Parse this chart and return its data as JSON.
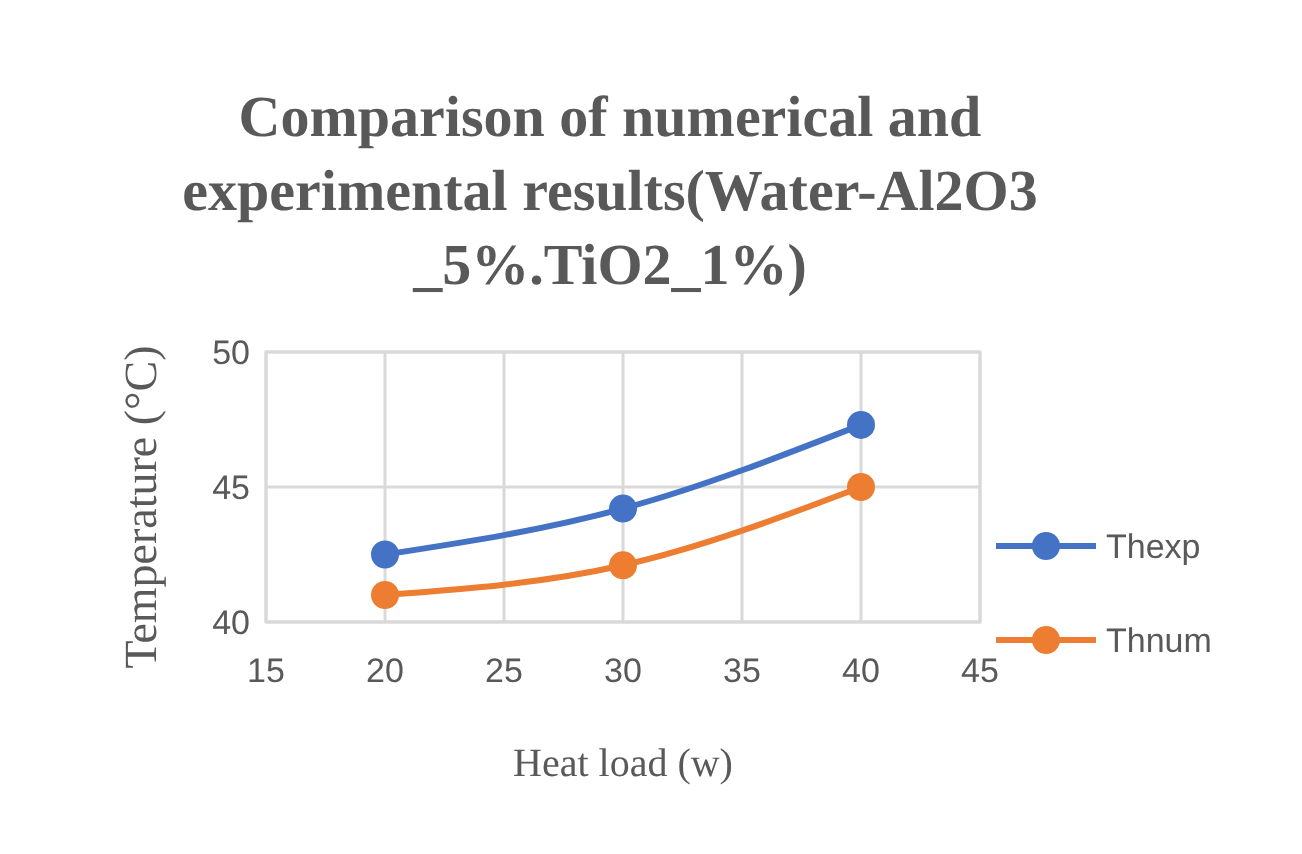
{
  "chart_data": {
    "type": "line",
    "title": "Comparison of numerical and experimental results(Water-Al2O3 _5%.TiO2_1%)",
    "xlabel": "Heat load (w)",
    "ylabel": "Temperature (°C)",
    "x": [
      20,
      30,
      40
    ],
    "series": [
      {
        "name": "Thexp",
        "color": "#4472c4",
        "values": [
          42.5,
          44.2,
          47.3
        ]
      },
      {
        "name": "Thnum",
        "color": "#ed7d31",
        "values": [
          41.0,
          42.1,
          45.0
        ]
      }
    ],
    "xlim": [
      15,
      45
    ],
    "xticks": [
      15,
      20,
      25,
      30,
      35,
      40,
      45
    ],
    "ylim": [
      40,
      50
    ],
    "yticks": [
      40,
      45,
      50
    ],
    "grid": true,
    "legend": "right",
    "marker": "circle",
    "line_style": "solid"
  }
}
